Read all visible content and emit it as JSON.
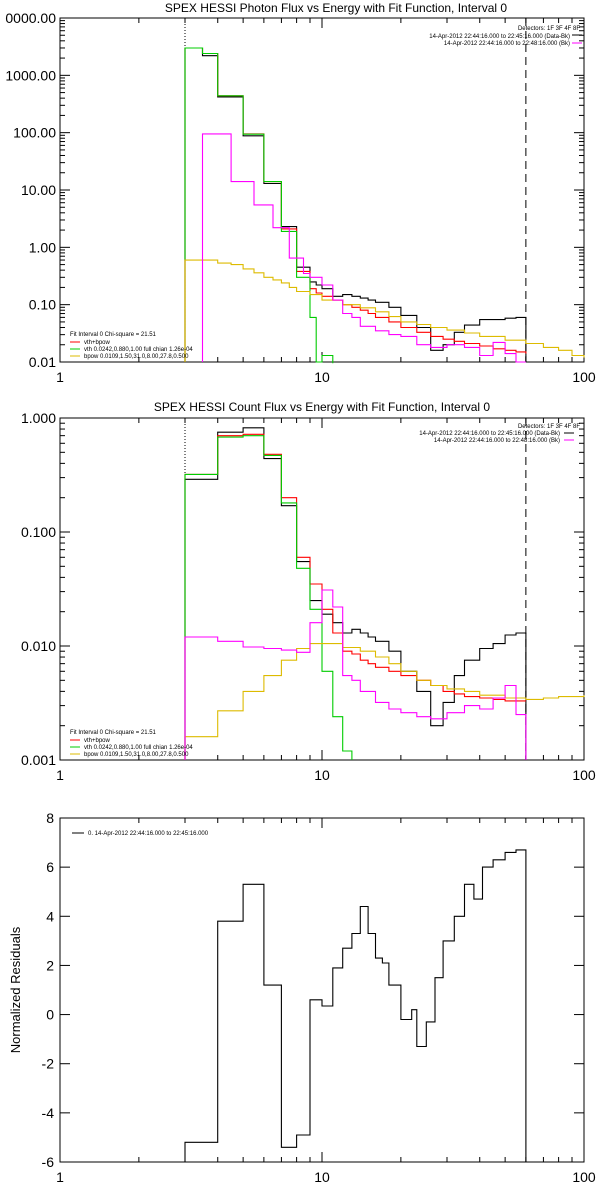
{
  "colors": {
    "data": "#000000",
    "total": "#ff0000",
    "thermal": "#00cc00",
    "bpow": "#ddbb00",
    "background": "#ff00ff"
  },
  "chart_data": [
    {
      "type": "line",
      "title": "SPEX HESSI Photon Flux vs Energy with Fit Function, Interval 0",
      "xscale": "log",
      "yscale": "log",
      "xlim": [
        1,
        100
      ],
      "ylim": [
        0.01,
        10000
      ],
      "x_tick_labels": [
        "1",
        "10",
        "100"
      ],
      "y_tick_labels": [
        "0.01",
        "0.10",
        "1.00",
        "10.00",
        "100.00",
        "1000.00",
        "0000.00"
      ],
      "fit_range_lines": [
        3,
        60
      ],
      "legend_top": [
        "Detectors: 1F 3F 4F 8F",
        "14-Apr-2012 22:44:16.000 to 22:45:16.000 (Data-Bk)",
        "14-Apr-2012 22:44:16.000 to 22:48:16.000 (Bk)"
      ],
      "legend_bottom": [
        "Fit Interval 0   Chi-square = 21.51",
        "vth+bpow",
        "vth 0.0242,0.880,1.00  full chian 1.26e-04",
        "bpow 0.0109,1.50,31.0,8.00,27.8,0.500"
      ],
      "series": [
        {
          "key": "data",
          "x": [
            3.0,
            3.5,
            4.0,
            4.5,
            5.0,
            5.5,
            6.0,
            6.5,
            7.0,
            7.5,
            8.0,
            8.5,
            9.0,
            9.5,
            10.0,
            11.0,
            12.0,
            13.0,
            14.0,
            15.0,
            16.0,
            18.0,
            20.0,
            23.0,
            26.0,
            29.0,
            32.0,
            35.0,
            40.0,
            45.0,
            50.0,
            55.0,
            60.0
          ],
          "y": [
            3000,
            2200,
            420,
            420,
            88,
            88,
            13,
            13,
            2.3,
            2.3,
            0.45,
            0.45,
            0.25,
            0.22,
            0.19,
            0.14,
            0.15,
            0.14,
            0.13,
            0.12,
            0.11,
            0.09,
            0.065,
            0.04,
            0.016,
            0.02,
            0.033,
            0.044,
            0.055,
            0.055,
            0.058,
            0.06,
            0.06
          ]
        },
        {
          "key": "total",
          "x": [
            3.0,
            3.5,
            4.0,
            4.5,
            5.0,
            5.5,
            6.0,
            6.5,
            7.0,
            7.5,
            8.0,
            8.5,
            9.0,
            9.5,
            10.0,
            11.0,
            12.0,
            13.0,
            14.0,
            15.0,
            16.0,
            18.0,
            20.0,
            23.0,
            26.0,
            29.0,
            32.0,
            35.0,
            40.0,
            45.0,
            50.0,
            55.0,
            60.0
          ],
          "y": [
            3000,
            2400,
            440,
            440,
            95,
            95,
            14,
            14,
            2.1,
            2.1,
            0.38,
            0.38,
            0.19,
            0.16,
            0.14,
            0.12,
            0.1,
            0.09,
            0.08,
            0.07,
            0.06,
            0.05,
            0.04,
            0.033,
            0.028,
            0.025,
            0.023,
            0.021,
            0.019,
            0.017,
            0.016,
            0.015,
            0.014
          ]
        },
        {
          "key": "thermal",
          "x": [
            3.0,
            3.5,
            4.0,
            4.5,
            5.0,
            5.5,
            6.0,
            6.5,
            7.0,
            7.5,
            8.0,
            8.5,
            9.0,
            9.5,
            10.0,
            11.0
          ],
          "y": [
            3000,
            2400,
            440,
            440,
            94,
            94,
            14,
            14,
            1.9,
            1.9,
            0.3,
            0.3,
            0.06,
            0.01,
            0.013,
            0.008
          ]
        },
        {
          "key": "bpow",
          "x": [
            3.0,
            3.5,
            4.0,
            4.5,
            5.0,
            5.5,
            6.0,
            6.5,
            7.0,
            7.5,
            8.0,
            9.0,
            10.0,
            12.0,
            14.0,
            16.0,
            18.0,
            20.0,
            23.0,
            26.0,
            30.0,
            35.0,
            40.0,
            50.0,
            60.0,
            70.0,
            80.0,
            90.0,
            100.0
          ],
          "y": [
            0.6,
            0.6,
            0.53,
            0.5,
            0.42,
            0.36,
            0.3,
            0.27,
            0.24,
            0.2,
            0.17,
            0.15,
            0.12,
            0.1,
            0.088,
            0.075,
            0.062,
            0.05,
            0.045,
            0.04,
            0.036,
            0.032,
            0.028,
            0.024,
            0.021,
            0.018,
            0.016,
            0.013,
            0.012
          ]
        },
        {
          "key": "background",
          "x": [
            3.5,
            4.0,
            4.5,
            5.0,
            5.5,
            6.0,
            6.5,
            7.0,
            7.5,
            8.0,
            8.5,
            9.0,
            10.0,
            11.0,
            12.0,
            13.0,
            14.0,
            16.0,
            18.0,
            20.0,
            23.0,
            26.0,
            30.0,
            35.0,
            40.0,
            45.0,
            50.0,
            55.0,
            60.0
          ],
          "y": [
            95,
            95,
            14,
            14,
            5.5,
            5.5,
            2.2,
            2.2,
            0.65,
            0.65,
            0.35,
            0.3,
            0.22,
            0.12,
            0.07,
            0.06,
            0.042,
            0.035,
            0.03,
            0.028,
            0.02,
            0.018,
            0.02,
            0.018,
            0.013,
            0.022,
            0.014,
            0.01,
            0.01
          ]
        }
      ]
    },
    {
      "type": "line",
      "title": "SPEX HESSI Count Flux vs Energy with Fit Function, Interval 0",
      "xscale": "log",
      "yscale": "log",
      "xlim": [
        1,
        100
      ],
      "ylim": [
        0.001,
        1.0
      ],
      "x_tick_labels": [
        "1",
        "10",
        "100"
      ],
      "y_tick_labels": [
        "0.001",
        "0.010",
        "0.100",
        "1.000"
      ],
      "fit_range_lines": [
        3,
        60
      ],
      "legend_top": [
        "Detectors: 1F 3F 4F 8F",
        "14-Apr-2012 22:44:16.000 to 22:45:16.000 (Data-Bk)",
        "14-Apr-2012 22:44:16.000 to 22:48:16.000 (Bk)"
      ],
      "legend_bottom": [
        "Fit Interval 0   Chi-square = 21.51",
        "vth+bpow",
        "vth 0.0242,0.880,1.00  full chian 1.26e-04",
        "bpow 0.0109,1.50,31.0,8.00,27.8,0.500"
      ],
      "series": [
        {
          "key": "data",
          "x": [
            3.0,
            4.0,
            5.0,
            6.0,
            7.0,
            8.0,
            9.0,
            10.0,
            11.0,
            12.0,
            13.0,
            14.0,
            15.0,
            16.0,
            18.0,
            20.0,
            23.0,
            26.0,
            29.0,
            32.0,
            35.0,
            40.0,
            45.0,
            50.0,
            55.0,
            60.0
          ],
          "y": [
            0.29,
            0.75,
            0.82,
            0.44,
            0.17,
            0.055,
            0.025,
            0.019,
            0.016,
            0.013,
            0.014,
            0.013,
            0.012,
            0.011,
            0.009,
            0.006,
            0.004,
            0.002,
            0.0032,
            0.0055,
            0.0075,
            0.0095,
            0.0105,
            0.0125,
            0.013,
            0.012
          ]
        },
        {
          "key": "total",
          "x": [
            3.0,
            4.0,
            5.0,
            6.0,
            7.0,
            8.0,
            9.0,
            10.0,
            11.0,
            12.0,
            13.0,
            14.0,
            15.0,
            16.0,
            18.0,
            20.0,
            23.0,
            26.0,
            29.0,
            32.0,
            35.0,
            40.0,
            45.0,
            50.0,
            55.0,
            60.0
          ],
          "y": [
            0.32,
            0.7,
            0.72,
            0.48,
            0.2,
            0.06,
            0.035,
            0.021,
            0.013,
            0.009,
            0.0085,
            0.0075,
            0.007,
            0.0065,
            0.006,
            0.0055,
            0.005,
            0.0045,
            0.004,
            0.0038,
            0.0036,
            0.0035,
            0.0034,
            0.0033,
            0.0033,
            0.0033
          ]
        },
        {
          "key": "thermal",
          "x": [
            3.0,
            4.0,
            5.0,
            6.0,
            7.0,
            8.0,
            9.0,
            10.0,
            11.0,
            12.0,
            13.0
          ],
          "y": [
            0.32,
            0.68,
            0.7,
            0.47,
            0.18,
            0.048,
            0.021,
            0.006,
            0.0024,
            0.0012,
            0.001
          ]
        },
        {
          "key": "bpow",
          "x": [
            3.0,
            4.0,
            5.0,
            6.0,
            7.0,
            8.0,
            9.0,
            10.0,
            12.0,
            14.0,
            16.0,
            18.0,
            20.0,
            23.0,
            26.0,
            30.0,
            35.0,
            40.0,
            50.0,
            60.0,
            70.0,
            80.0,
            90.0,
            100.0
          ],
          "y": [
            0.0016,
            0.0027,
            0.004,
            0.0055,
            0.0075,
            0.0095,
            0.0105,
            0.0105,
            0.0097,
            0.009,
            0.008,
            0.007,
            0.006,
            0.005,
            0.0045,
            0.0042,
            0.004,
            0.0037,
            0.0035,
            0.0034,
            0.0035,
            0.0036,
            0.0036,
            0.0037
          ]
        },
        {
          "key": "background",
          "x": [
            3.0,
            4.0,
            5.0,
            6.0,
            7.0,
            8.0,
            9.0,
            10.0,
            11.0,
            12.0,
            13.0,
            14.0,
            16.0,
            18.0,
            20.0,
            23.0,
            26.0,
            30.0,
            35.0,
            40.0,
            45.0,
            50.0,
            55.0,
            60.0
          ],
          "y": [
            0.012,
            0.011,
            0.0098,
            0.0095,
            0.0092,
            0.0088,
            0.016,
            0.031,
            0.022,
            0.0055,
            0.005,
            0.004,
            0.0032,
            0.0028,
            0.0026,
            0.0024,
            0.0023,
            0.0026,
            0.003,
            0.0028,
            0.0035,
            0.0045,
            0.0025,
            0.001
          ]
        }
      ]
    },
    {
      "type": "line",
      "title": "",
      "xscale": "log",
      "yscale": "linear",
      "xlim": [
        1,
        100
      ],
      "ylim": [
        -6,
        8
      ],
      "x_tick_labels": [
        "1",
        "10",
        "100"
      ],
      "y_ticks": [
        -6,
        -4,
        -2,
        0,
        2,
        4,
        6,
        8
      ],
      "ylabel": "Normalized Residuals",
      "legend": "0. 14-Apr-2012 22:44:16.000 to 22:45:16.000",
      "series": [
        {
          "key": "data",
          "x": [
            3.0,
            4.0,
            5.0,
            6.0,
            7.0,
            8.0,
            9.0,
            10.0,
            11.0,
            12.0,
            13.0,
            14.0,
            15.0,
            16.0,
            17.0,
            18.0,
            20.0,
            22.0,
            23.0,
            25.0,
            27.0,
            29.0,
            32.0,
            35.0,
            38.0,
            41.0,
            45.0,
            50.0,
            55.0,
            60.0
          ],
          "y": [
            -5.2,
            3.8,
            5.3,
            1.2,
            -5.4,
            -4.9,
            0.6,
            0.35,
            1.9,
            2.7,
            3.3,
            4.4,
            3.3,
            2.3,
            2.1,
            1.2,
            -0.2,
            0.2,
            -1.3,
            -0.3,
            1.5,
            3.0,
            4.0,
            5.3,
            4.7,
            6.0,
            6.3,
            6.6,
            6.7,
            6.7
          ]
        }
      ]
    }
  ]
}
